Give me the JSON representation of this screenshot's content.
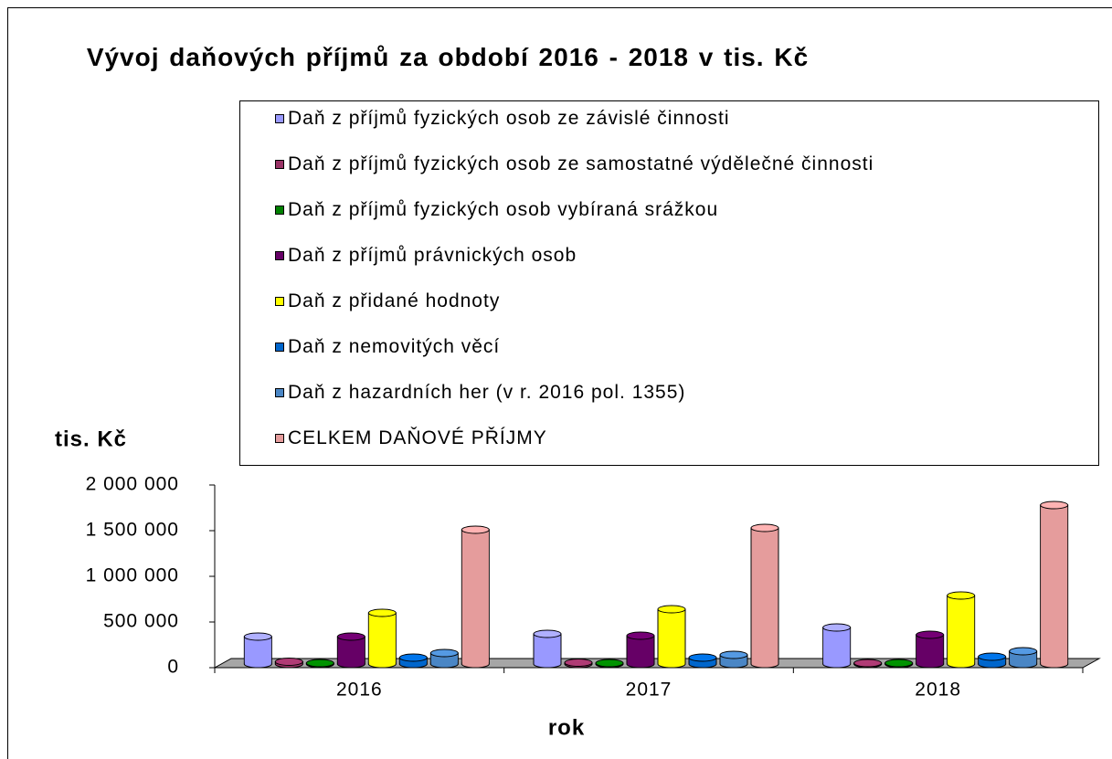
{
  "chart_data": {
    "type": "bar3d",
    "title": "Vývoj daňových příjmů za období 2016 - 2018  v tis. Kč",
    "y_label": "tis. Kč",
    "x_label": "rok",
    "categories": [
      "2016",
      "2017",
      "2018"
    ],
    "series": [
      {
        "name": "Daň z příjmů fyzických osob ze závislé činnosti",
        "color": "#9999ff",
        "values": [
          300000,
          330000,
          400000
        ]
      },
      {
        "name": "Daň z příjmů fyzických osob ze samostatné výdělečné činnosti",
        "color": "#993366",
        "values": [
          25000,
          15000,
          10000
        ]
      },
      {
        "name": "Daň z příjmů fyzických osob vybíraná srážkou",
        "color": "#008000",
        "values": [
          10000,
          10000,
          10000
        ]
      },
      {
        "name": "Daň z příjmů právnických osob",
        "color": "#660066",
        "values": [
          300000,
          310000,
          320000
        ]
      },
      {
        "name": "Daň z přidané hodnoty",
        "color": "#ffff00",
        "values": [
          560000,
          600000,
          750000
        ]
      },
      {
        "name": "Daň z nemovitých věcí",
        "color": "#0066cc",
        "values": [
          70000,
          70000,
          80000
        ]
      },
      {
        "name": "Daň z hazardních her (v r. 2016 pol. 1355)",
        "color": "#4a86c5",
        "values": [
          120000,
          100000,
          140000
        ]
      },
      {
        "name": "CELKEM DAŇOVÉ PŘÍJMY",
        "color": "#e59c9c",
        "values": [
          1470000,
          1490000,
          1740000
        ]
      }
    ],
    "ylim": [
      0,
      2000000
    ],
    "yticks": [
      0,
      {
        "value": 500000,
        "label": "500 000"
      },
      {
        "value": 1000000,
        "label": "1 000 000"
      },
      {
        "value": 1500000,
        "label": "1 500 000"
      },
      {
        "value": 2000000,
        "label": "2 000 000"
      }
    ]
  }
}
